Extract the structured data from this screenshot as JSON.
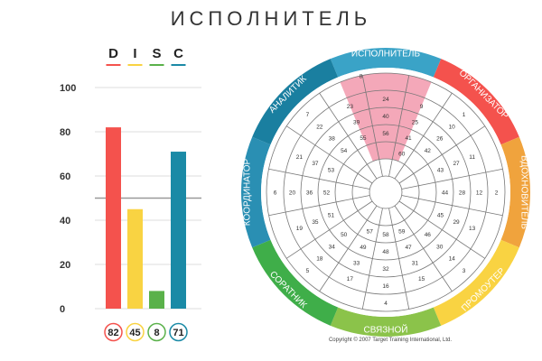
{
  "page": {
    "title": "ИСПОЛНИТЕЛЬ",
    "copyright": "Copyright © 2007 Target Training International, Ltd."
  },
  "chart_data": [
    {
      "type": "bar",
      "categories": [
        "D",
        "I",
        "S",
        "C"
      ],
      "values": [
        82,
        45,
        8,
        71
      ],
      "value_labels": [
        "82",
        "45",
        "8",
        "71"
      ],
      "colors": [
        "#f4524d",
        "#f9d342",
        "#5ab14a",
        "#1a8aa6"
      ],
      "yticks": [
        "0",
        "20",
        "40",
        "60",
        "80",
        "100"
      ],
      "ylim": [
        0,
        100
      ],
      "reference_line": 50,
      "grid": true
    },
    {
      "type": "wheel",
      "segments": [
        "ИСПОЛНИТЕЛЬ",
        "ОРГАНИЗАТОР",
        "ВДОХНОВИТЕЛЬ",
        "ПРОМОУТЕР",
        "СВЯЗНОЙ",
        "СОРАТНИК",
        "КООРДИНАТОР",
        "АНАЛИТИК"
      ],
      "highlighted_segment": "ИСПОЛНИТЕЛЬ",
      "sector_numbers": [
        [
          "24",
          "40",
          "56"
        ],
        [
          "9",
          "25",
          "41"
        ],
        [
          "1",
          "10",
          "26",
          "42"
        ],
        [
          "11",
          "27",
          "43"
        ],
        [
          "2",
          "12",
          "28",
          "44"
        ],
        [
          "13",
          "29",
          "45"
        ],
        [
          "3",
          "14",
          "30",
          "46"
        ],
        [
          "15",
          "31",
          "47"
        ],
        [
          "4",
          "16",
          "32",
          "48"
        ],
        [
          "17",
          "33",
          "49"
        ],
        [
          "5",
          "18",
          "34",
          "50"
        ],
        [
          "19",
          "35",
          "51"
        ],
        [
          "6",
          "20",
          "36",
          "52"
        ],
        [
          "21",
          "37",
          "53"
        ],
        [
          "7",
          "22",
          "38",
          "54"
        ],
        [
          "23",
          "39",
          "55"
        ]
      ],
      "extra_labels": [
        "8",
        "57",
        "58",
        "59",
        "60"
      ]
    }
  ]
}
